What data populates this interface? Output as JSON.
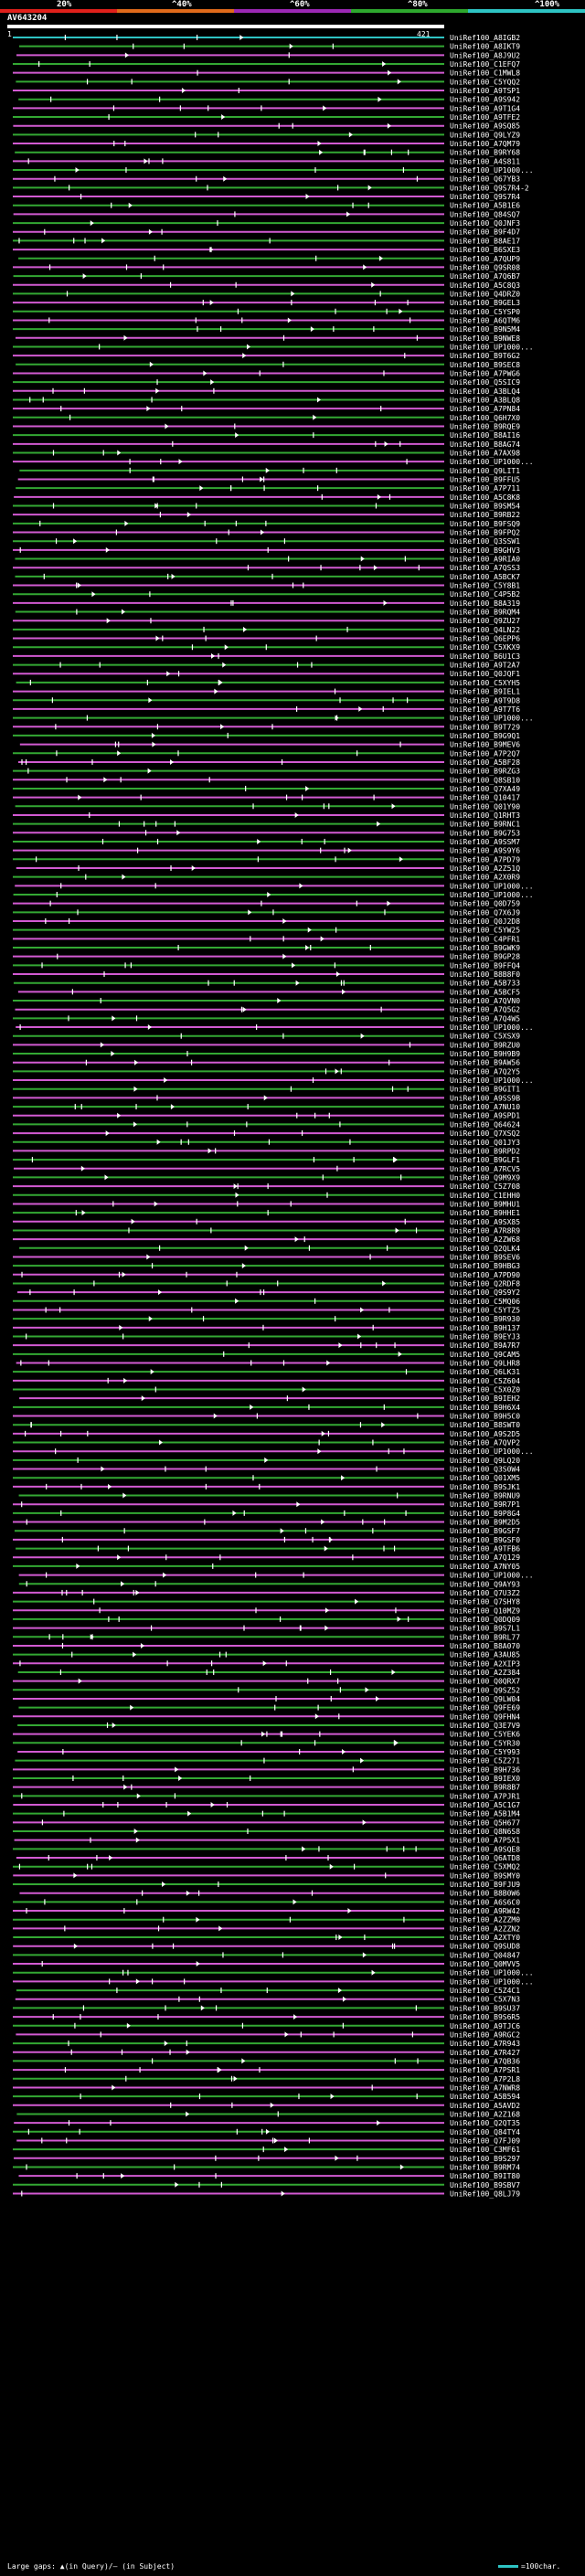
{
  "scale": {
    "ticks": [
      "20%",
      "^40%",
      "^60%",
      "^80%",
      "^100%"
    ],
    "colors": [
      "#e0201b",
      "#e06a1b",
      "#9b28b4",
      "#2ea82e",
      "#2ec4c4"
    ]
  },
  "query": {
    "id": "AV643204",
    "start": "1",
    "end": "421"
  },
  "colors": {
    "magenta": "#d25ad2",
    "green": "#33a833",
    "cyan": "#2ec4c4",
    "white": "#ffffff"
  },
  "hits": [
    "UniRef100_A8IGB2",
    "UniRef100_A8IKT9",
    "UniRef100_A8J9U2",
    "UniRef100_C1EFQ7",
    "UniRef100_C1MWL8",
    "UniRef100_C5YQQ2",
    "UniRef100_A9TSP1",
    "UniRef100_A9S942",
    "UniRef100_A9T1G4",
    "UniRef100_A9TFE2",
    "UniRef100_A9SQ85",
    "UniRef100_Q9LYZ9",
    "UniRef100_A7QM79",
    "UniRef100_B9RY68",
    "UniRef100_A4S811",
    "UniRef100_UP1000...",
    "UniRef100_Q67YB3",
    "UniRef100_Q9S7R4-2",
    "UniRef100_Q9S7R4",
    "UniRef100_A5B1E6",
    "UniRef100_Q84SQ7",
    "UniRef100_Q0JNF3",
    "UniRef100_B9F4D7",
    "UniRef100_B8AE17",
    "UniRef100_B6SXE3",
    "UniRef100_A7QUP9",
    "UniRef100_Q9SR08",
    "UniRef100_A7Q6B7",
    "UniRef100_A5C8Q3",
    "UniRef100_Q4DRZ0",
    "UniRef100_B9GEL3",
    "UniRef100_C5YSP0",
    "UniRef100_A6QTM6",
    "UniRef100_B9N5M4",
    "UniRef100_B9NWE8",
    "UniRef100_UP1000...",
    "UniRef100_B9T6G2",
    "UniRef100_B9SEC8",
    "UniRef100_A7PWG6",
    "UniRef100_Q5SIC9",
    "UniRef100_A3BLQ4",
    "UniRef100_A3BLQ8",
    "UniRef100_A7PN84",
    "UniRef100_Q6H7X0",
    "UniRef100_B9RQE9",
    "UniRef100_B8AI16",
    "UniRef100_B8AG74",
    "UniRef100_A7AX98",
    "UniRef100_UP1000...",
    "UniRef100_Q9LIT1",
    "UniRef100_B9FFU5",
    "UniRef100_A7P711",
    "UniRef100_A5C8K8",
    "UniRef100_B9SM54",
    "UniRef100_B9RB22",
    "UniRef100_B9FSQ9",
    "UniRef100_B9FPQ2",
    "UniRef100_Q3SSW1",
    "UniRef100_B9GHV3",
    "UniRef100_A9RIA0",
    "UniRef100_A7QSS3",
    "UniRef100_A5BCK7",
    "UniRef100_C5Y8B1",
    "UniRef100_C4P5B2",
    "UniRef100_B8A319",
    "UniRef100_B9RQM4",
    "UniRef100_Q9ZU27",
    "UniRef100_Q4LN22",
    "UniRef100_Q6EPP6",
    "UniRef100_C5XKX9",
    "UniRef100_B6U1C3",
    "UniRef100_A9T2A7",
    "UniRef100_Q0JQF1",
    "UniRef100_C5XYH5",
    "UniRef100_B9IEL1",
    "UniRef100_A9T9D8",
    "UniRef100_A9T7T6",
    "UniRef100_UP1000...",
    "UniRef100_B9T729",
    "UniRef100_B9G9Q1",
    "UniRef100_B9MEV6",
    "UniRef100_A7P2Q7",
    "UniRef100_A5BF28",
    "UniRef100_B9RZG3",
    "UniRef100_Q8SB10",
    "UniRef100_Q7XA49",
    "UniRef100_Q10417",
    "UniRef100_Q01Y90",
    "UniRef100_Q1RHT3",
    "UniRef100_B9RNC1",
    "UniRef100_B9G753",
    "UniRef100_A9SSM7",
    "UniRef100_A9S9Y6",
    "UniRef100_A7PD79",
    "UniRef100_A2Z51Q",
    "UniRef100_A2X0R9",
    "UniRef100_UP1000...",
    "UniRef100_UP1000...",
    "UniRef100_Q0D759",
    "UniRef100_Q7X6J9",
    "UniRef100_Q0J2D8",
    "UniRef100_C5YW25",
    "UniRef100_C4PFR1",
    "UniRef100_B9GWK9",
    "UniRef100_B9GP28",
    "UniRef100_B9FFQ4",
    "UniRef100_B8B8F0",
    "UniRef100_A5B733",
    "UniRef100_A5BCF5",
    "UniRef100_A7QVN0",
    "UniRef100_A7Q5G2",
    "UniRef100_A7Q4W5",
    "UniRef100_UP1000...",
    "UniRef100_C5XSX9",
    "UniRef100_B9RZU0",
    "UniRef100_B9H9B9",
    "UniRef100_B9AW56",
    "UniRef100_A7Q2Y5",
    "UniRef100_UP1000...",
    "UniRef100_B9GIT1",
    "UniRef100_A9SS9B",
    "UniRef100_A7NU10",
    "UniRef100_A9SPD1",
    "UniRef100_Q64624",
    "UniRef100_Q7XSQ2",
    "UniRef100_Q01JY3",
    "UniRef100_B9RPD2",
    "UniRef100_B9GLF1",
    "UniRef100_A7RCV5",
    "UniRef100_Q9M9X9",
    "UniRef100_C5Z708",
    "UniRef100_C1EHH0",
    "UniRef100_B9MHU1",
    "UniRef100_B9HHE1",
    "UniRef100_A9SX85",
    "UniRef100_A7R8R9",
    "UniRef100_A2ZW68",
    "UniRef100_Q2QLK4",
    "UniRef100_B9SEV6",
    "UniRef100_B9HBG3",
    "UniRef100_A7PD90",
    "UniRef100_Q2RDF8",
    "UniRef100_Q9S9Y2",
    "UniRef100_C5MQ06",
    "UniRef100_C5YTZ5",
    "UniRef100_B9R930",
    "UniRef100_B9H137",
    "UniRef100_B9EYJ3",
    "UniRef100_B9A7R7",
    "UniRef100_Q9CAM5",
    "UniRef100_Q9LHR8",
    "UniRef100_Q6LK31",
    "UniRef100_C5Z604",
    "UniRef100_C5X0Z0",
    "UniRef100_B9IEH2",
    "UniRef100_B9H6X4",
    "UniRef100_B9H5C0",
    "UniRef100_B8SWT0",
    "UniRef100_A9S2D5",
    "UniRef100_A7QVP2",
    "UniRef100_UP1000...",
    "UniRef100_Q9LQ20",
    "UniRef100_Q3S0W4",
    "UniRef100_Q01XM5",
    "UniRef100_B9SJK1",
    "UniRef100_B9RNU9",
    "UniRef100_B9R7P1",
    "UniRef100_B9P8G4",
    "UniRef100_B9M2D5",
    "UniRef100_B9GSF7",
    "UniRef100_B9GSF0",
    "UniRef100_A9TFB6",
    "UniRef100_A7Q129",
    "UniRef100_A7NY05",
    "UniRef100_UP1000...",
    "UniRef100_Q9AY93",
    "UniRef100_Q7U3Z2",
    "UniRef100_Q7SHY8",
    "UniRef100_Q10MZ9",
    "UniRef100_Q0DQ09",
    "UniRef100_B9S7L1",
    "UniRef100_B9RL77",
    "UniRef100_B8A070",
    "UniRef100_A3AU85",
    "UniRef100_A2XIP3",
    "UniRef100_A2Z384",
    "UniRef100_Q0QRX7",
    "UniRef100_Q9SZ52",
    "UniRef100_Q9LW04",
    "UniRef100_Q9FE69",
    "UniRef100_Q9FHN4",
    "UniRef100_Q3E7V9",
    "UniRef100_C5YEK6",
    "UniRef100_C5YR30",
    "UniRef100_C5Y993",
    "UniRef100_C5Z271",
    "UniRef100_B9H736",
    "UniRef100_B9IEX0",
    "UniRef100_B9R8B7",
    "UniRef100_A7PJR1",
    "UniRef100_A5C1G7",
    "UniRef100_A5B1M4",
    "UniRef100_Q5H677",
    "UniRef100_Q8N6S8",
    "UniRef100_A7P5X1",
    "UniRef100_A9SQE8",
    "UniRef100_Q6ATD8",
    "UniRef100_C5XMQ2",
    "UniRef100_B9SMY0",
    "UniRef100_B9FJU9",
    "UniRef100_B8B0W6",
    "UniRef100_A6S6C0",
    "UniRef100_A9RW42",
    "UniRef100_A2ZZM0",
    "UniRef100_A2ZZN2",
    "UniRef100_A2XTY0",
    "UniRef100_Q9SUD8",
    "UniRef100_Q04847",
    "UniRef100_Q0MVV5",
    "UniRef100_UP1000...",
    "UniRef100_UP1000...",
    "UniRef100_C5Z4C1",
    "UniRef100_C5X7N3",
    "UniRef100_B9SU37",
    "UniRef100_B9S6R5",
    "UniRef100_A9TJC6",
    "UniRef100_A9RGC2",
    "UniRef100_A7R943",
    "UniRef100_A7R427",
    "UniRef100_A7QB36",
    "UniRef100_A7PSR1",
    "UniRef100_A7P2L8",
    "UniRef100_A7NWR8",
    "UniRef100_A5B594",
    "UniRef100_A5AVD2",
    "UniRef100_A2Z168",
    "UniRef100_Q2QT35",
    "UniRef100_Q84TY4",
    "UniRef100_Q7FJ09",
    "UniRef100_C3MF61",
    "UniRef100_B9S297",
    "UniRef100_B9RM74",
    "UniRef100_B9IT80",
    "UniRef100_B9SBV7",
    "UniRef100_Q8LJ79"
  ],
  "legend": {
    "text": "Large gaps: ▲(in Query)/— (in Subject)",
    "key": "=100char."
  }
}
